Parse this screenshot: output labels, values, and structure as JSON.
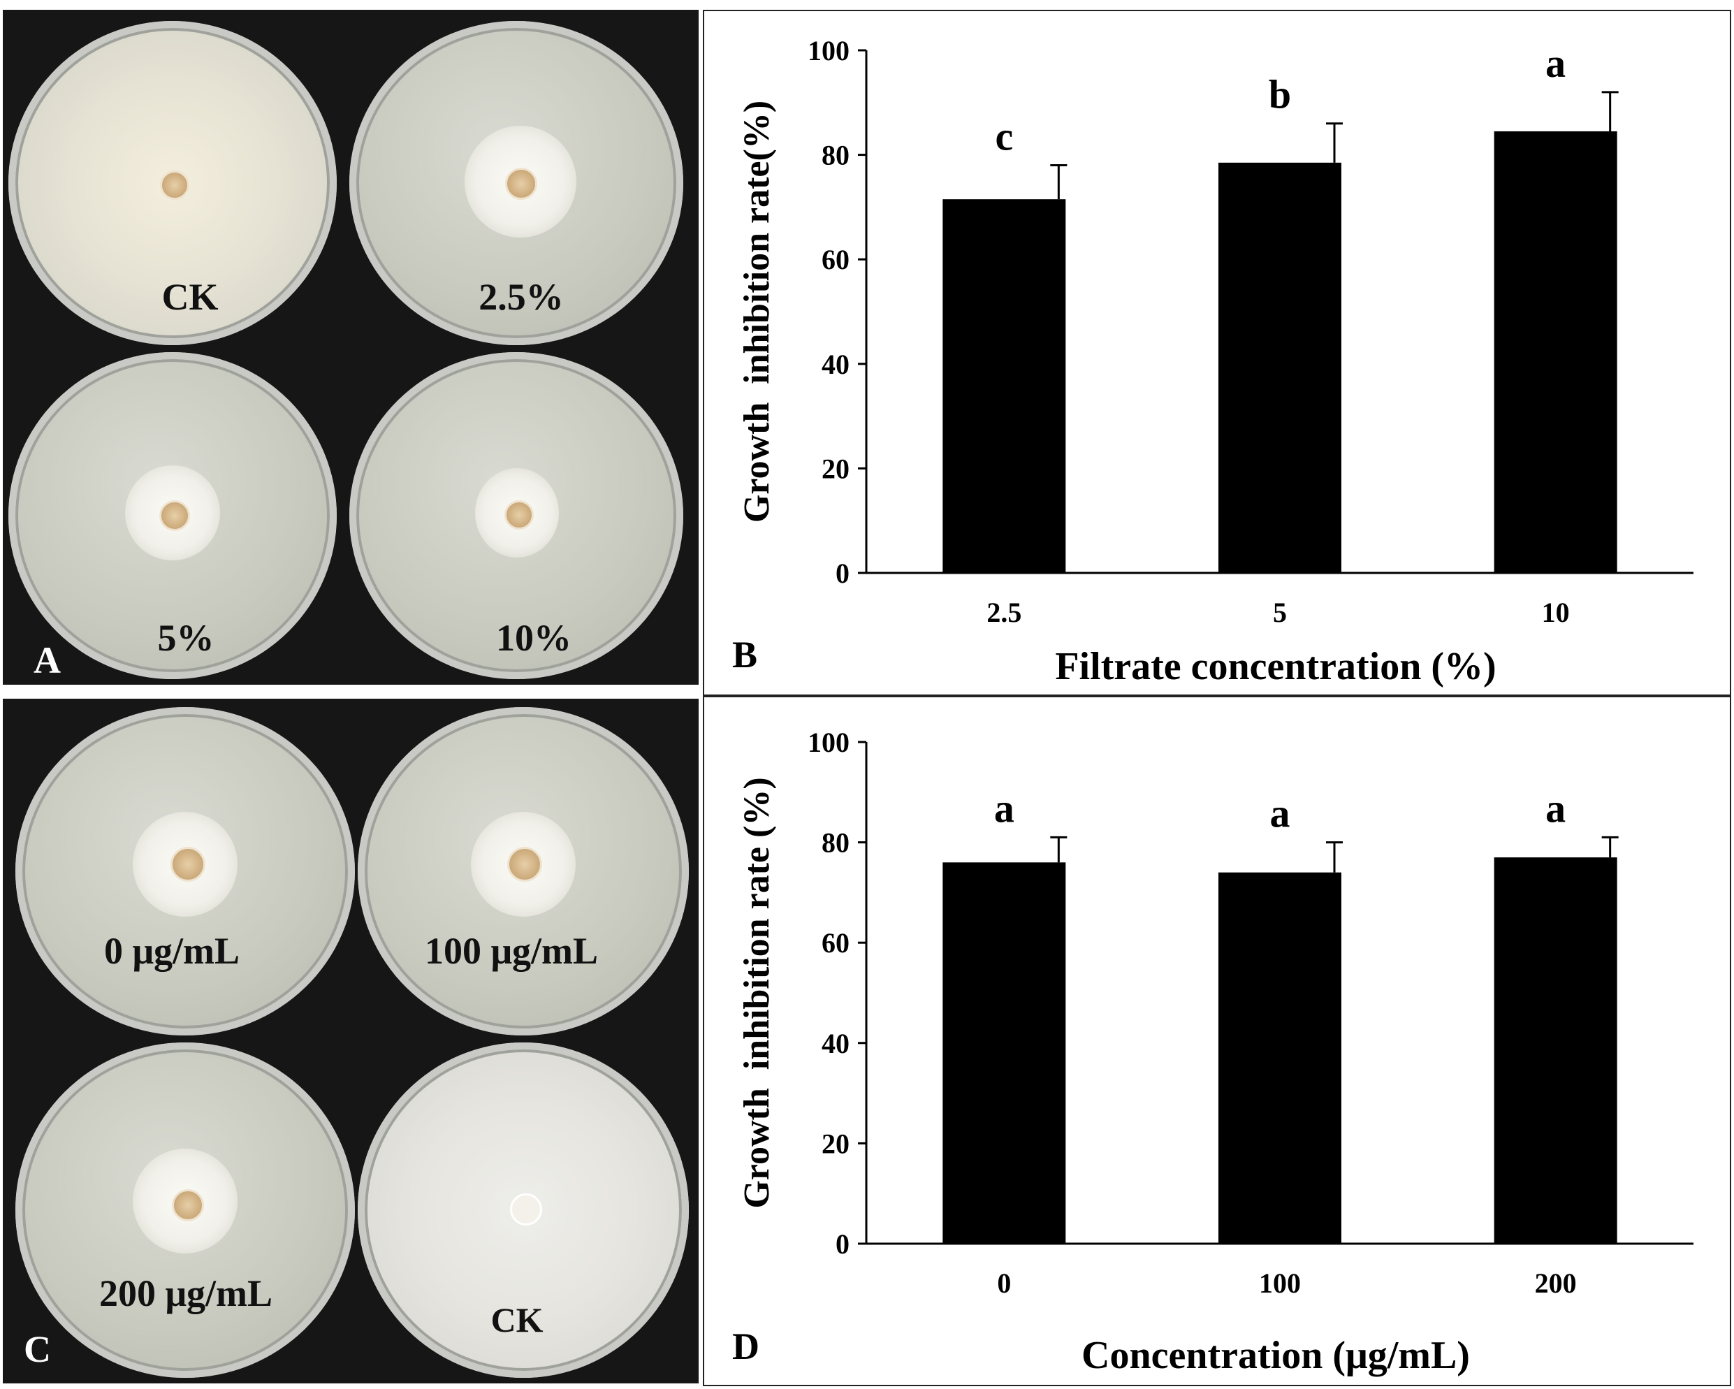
{
  "panel_a": {
    "letter": "A",
    "plates": [
      {
        "label": "CK"
      },
      {
        "label": "2.5%"
      },
      {
        "label": "5%"
      },
      {
        "label": "10%"
      }
    ]
  },
  "panel_c": {
    "letter": "C",
    "plates": [
      {
        "label": "0 μg/mL"
      },
      {
        "label": "100 μg/mL"
      },
      {
        "label": "200 μg/mL"
      },
      {
        "label": "CK"
      }
    ]
  },
  "chart_data": [
    {
      "panel": "B",
      "type": "bar",
      "categories": [
        "2.5",
        "5",
        "10"
      ],
      "values": [
        71.5,
        78.5,
        84.5
      ],
      "errors": [
        6.5,
        7.5,
        7.5
      ],
      "significance": [
        "c",
        "b",
        "a"
      ],
      "xlabel": "Filtrate concentration (%)",
      "ylabel": "Growth  inhibition rate(%)",
      "ylim": [
        0,
        100
      ],
      "yticks": [
        "0",
        "20",
        "40",
        "60",
        "80",
        "100"
      ],
      "grid": false,
      "bar_color": "#000000"
    },
    {
      "panel": "D",
      "type": "bar",
      "categories": [
        "0",
        "100",
        "200"
      ],
      "values": [
        76,
        74,
        77
      ],
      "errors": [
        5,
        6,
        4
      ],
      "significance": [
        "a",
        "a",
        "a"
      ],
      "xlabel": "Concentration (μg/mL)",
      "ylabel": "Growth  inhibition rate (%)",
      "ylim": [
        0,
        100
      ],
      "yticks": [
        "0",
        "20",
        "40",
        "60",
        "80",
        "100"
      ],
      "grid": false,
      "bar_color": "#000000"
    }
  ]
}
